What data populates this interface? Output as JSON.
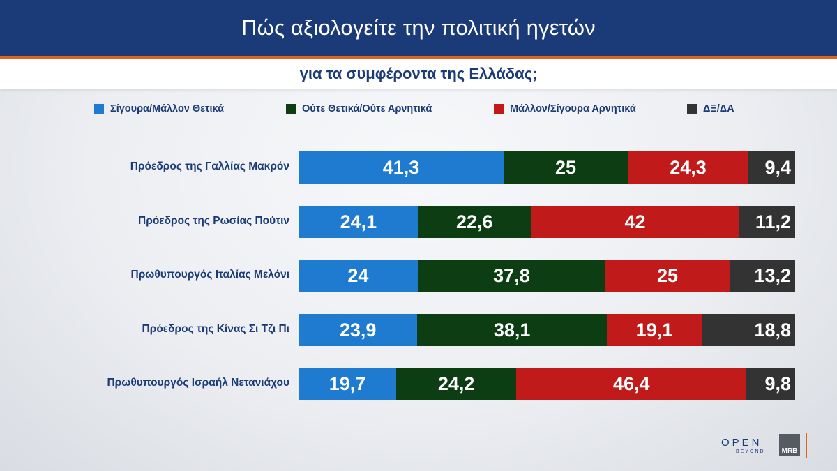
{
  "header": {
    "title": "Πώς αξιολογείτε την πολιτική ηγετών",
    "subtitle": "για τα συμφέροντα της Ελλάδας;"
  },
  "colors": {
    "header_bg": "#1a3a78",
    "accent": "#e0641e",
    "positive": "#1f7bd0",
    "neutral": "#0d3d12",
    "negative": "#c01a1a",
    "dk": "#333333"
  },
  "logos": {
    "open": "OPEN",
    "beyond": "BEYOND",
    "mrb": "MRB"
  },
  "chart_data": {
    "type": "bar",
    "orientation": "horizontal",
    "stacked": true,
    "legend_position": "top",
    "categories": [
      "Πρόεδρος της Γαλλίας Μακρόν",
      "Πρόεδρος της Ρωσίας Πούτιν",
      "Πρωθυπουργός Ιταλίας Μελόνι",
      "Πρόεδρος της Κίνας Σι Τζι Πι",
      "Πρωθυπουργός Ισραήλ Νετανιάχου"
    ],
    "series": [
      {
        "name": "Σίγουρα/Μάλλον Θετικά",
        "color": "#1f7bd0",
        "values": [
          41.3,
          24.1,
          24,
          23.9,
          19.7
        ],
        "labels": [
          "41,3",
          "24,1",
          "24",
          "23,9",
          "19,7"
        ]
      },
      {
        "name": "Ούτε Θετικά/Ούτε Αρνητικά",
        "color": "#0d3d12",
        "values": [
          25,
          22.6,
          37.8,
          38.1,
          24.2
        ],
        "labels": [
          "25",
          "22,6",
          "37,8",
          "38,1",
          "24,2"
        ]
      },
      {
        "name": "Μάλλον/Σίγουρα Αρνητικά",
        "color": "#c01a1a",
        "values": [
          24.3,
          42,
          25,
          19.1,
          46.4
        ],
        "labels": [
          "24,3",
          "42",
          "25",
          "19,1",
          "46,4"
        ]
      },
      {
        "name": "ΔΞ/ΔΑ",
        "color": "#333333",
        "values": [
          9.4,
          11.2,
          13.2,
          18.8,
          9.8
        ],
        "labels": [
          "9,4",
          "11,2",
          "13,2",
          "18,8",
          "9,8"
        ]
      }
    ]
  }
}
